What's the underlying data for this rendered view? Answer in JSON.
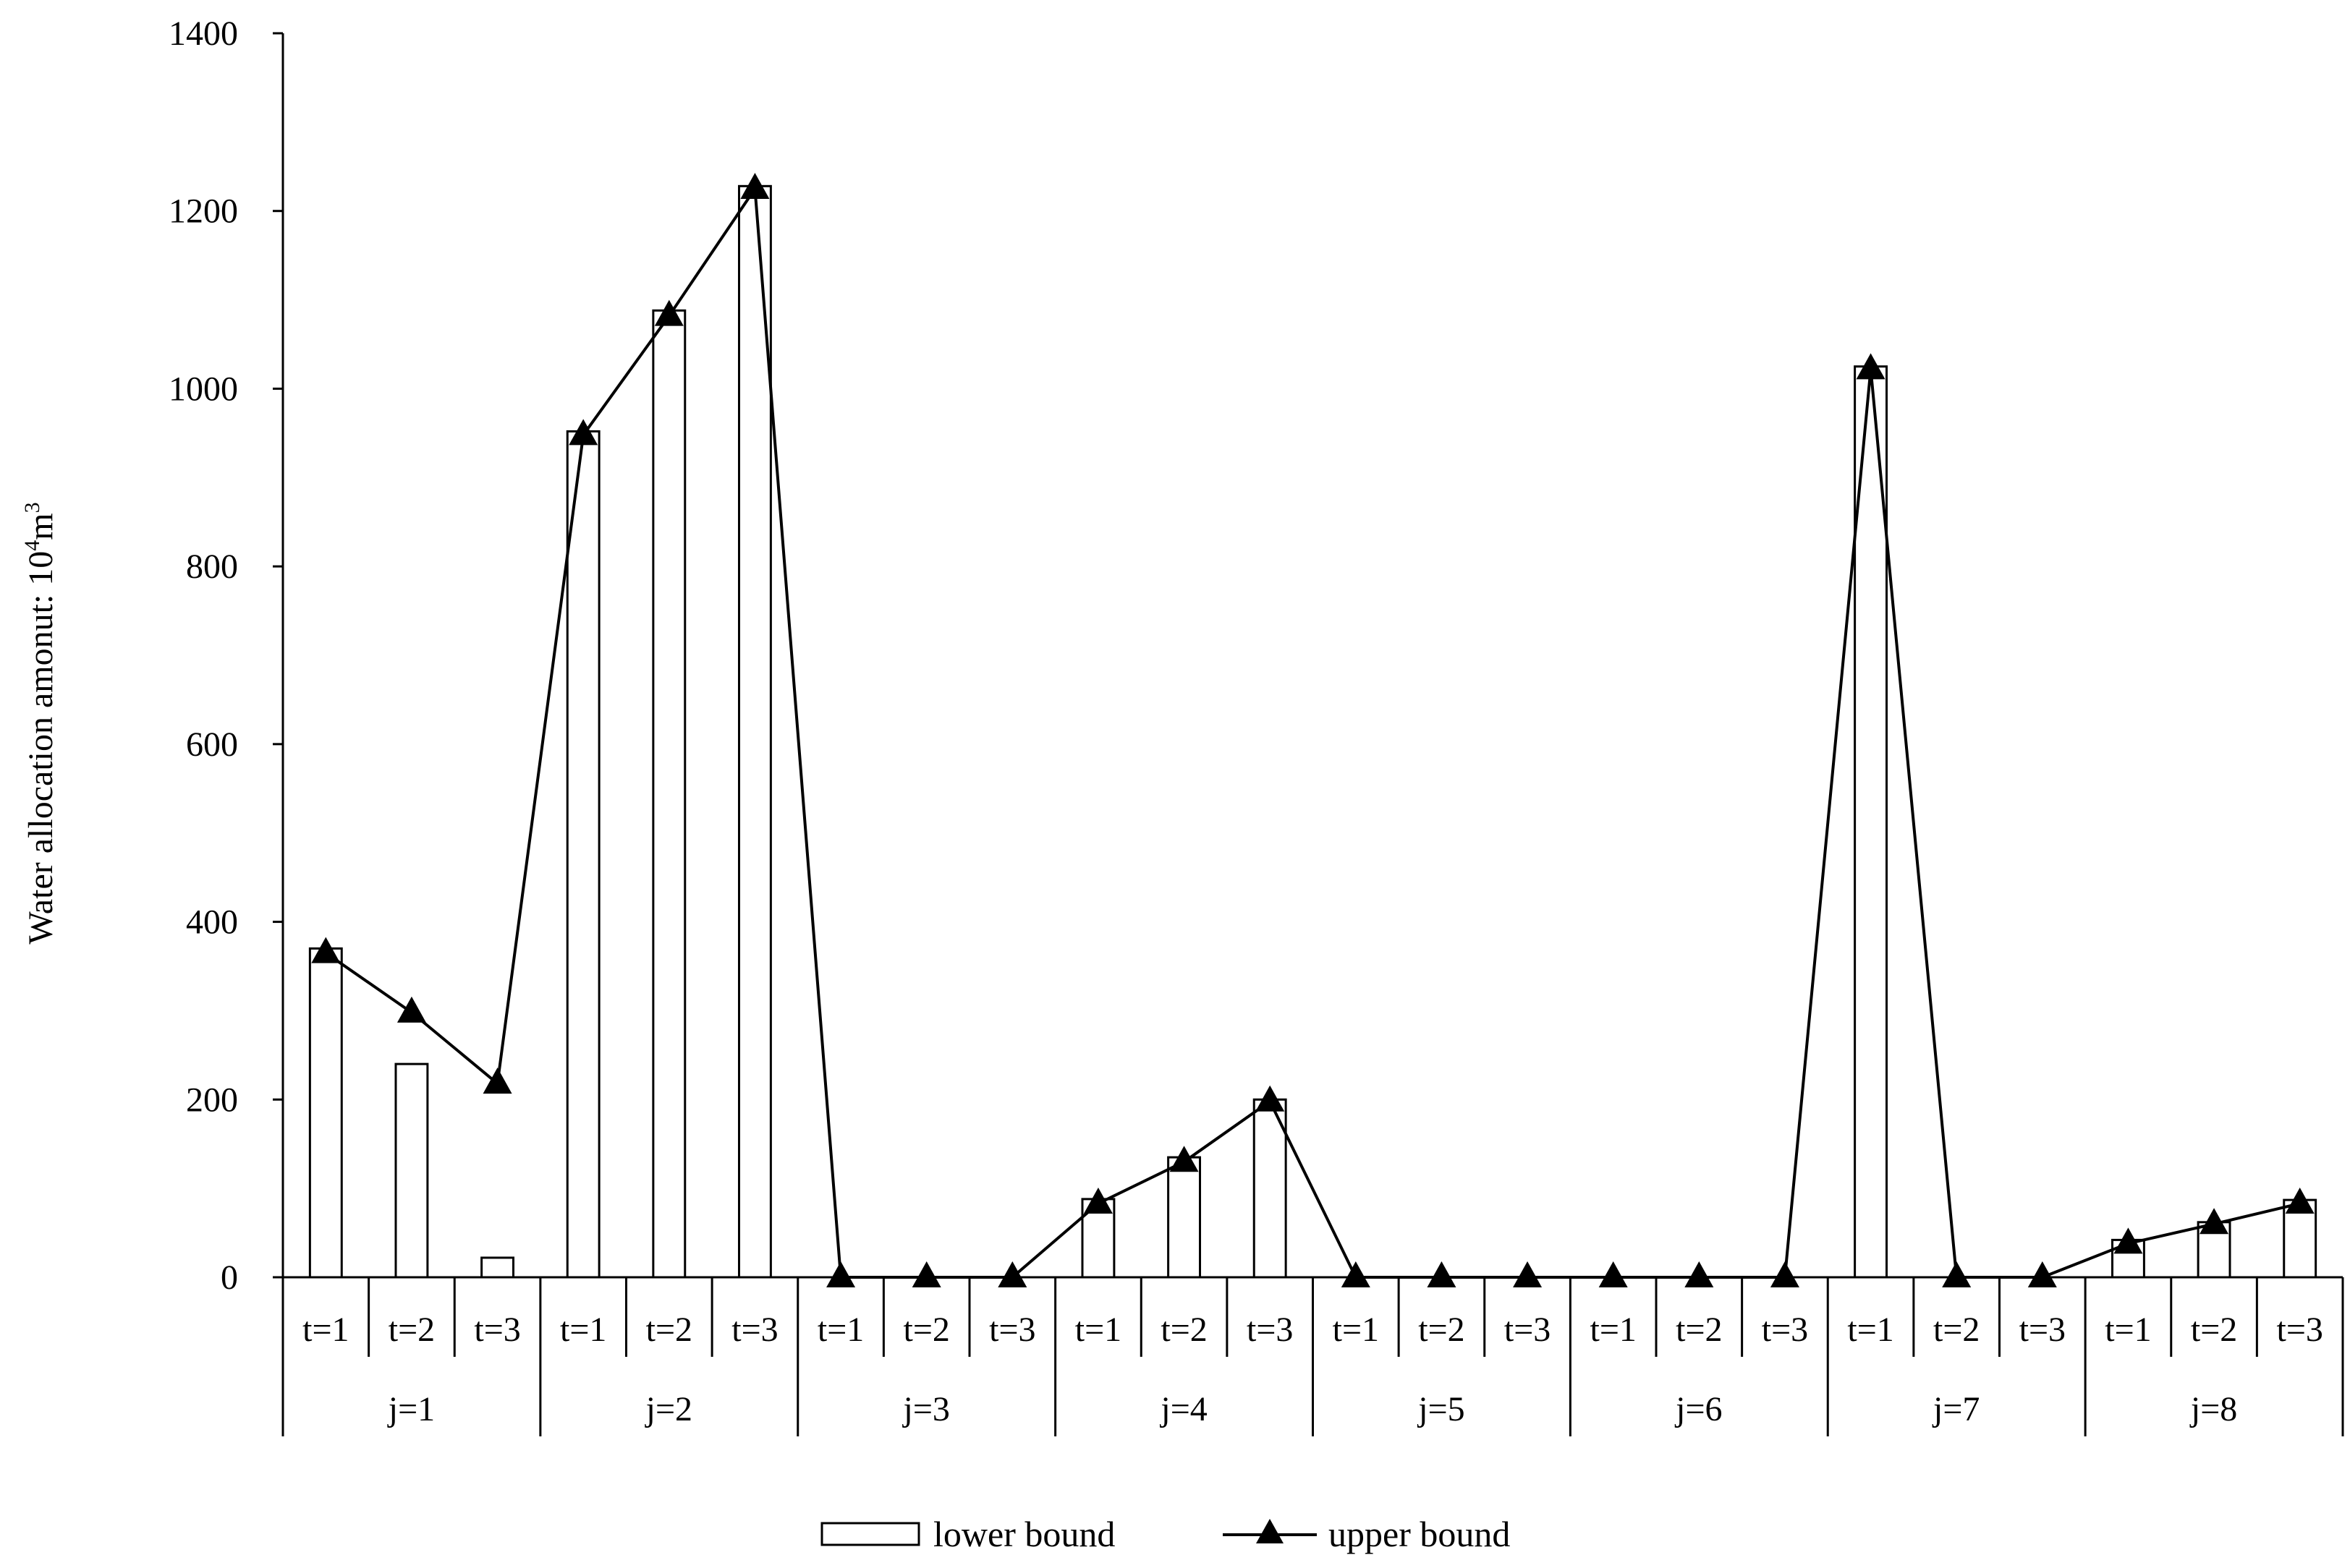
{
  "chart_data": {
    "type": "bar",
    "title": "",
    "xlabel": "",
    "ylabel": "Water allocation  amonut:  10",
    "ylabel_sup": "4",
    "ylabel_unit_tail": "m",
    "ylabel_unit_sup": "3",
    "ylim": [
      0,
      1400
    ],
    "yticks": [
      0,
      200,
      400,
      600,
      800,
      1000,
      1200,
      1400
    ],
    "grid": false,
    "legend_position": "bottom",
    "groups": [
      "j=1",
      "j=2",
      "j=3",
      "j=4",
      "j=5",
      "j=6",
      "j=7",
      "j=8"
    ],
    "categories": [
      "t=1",
      "t=2",
      "t=3",
      "t=1",
      "t=2",
      "t=3",
      "t=1",
      "t=2",
      "t=3",
      "t=1",
      "t=2",
      "t=3",
      "t=1",
      "t=2",
      "t=3",
      "t=1",
      "t=2",
      "t=3",
      "t=1",
      "t=2",
      "t=3",
      "t=1",
      "t=2",
      "t=3"
    ],
    "series": [
      {
        "name": "lower bound",
        "kind": "bar",
        "values": [
          370,
          240,
          22,
          952,
          1088,
          1228,
          0,
          0,
          0,
          88,
          135,
          200,
          0,
          0,
          0,
          0,
          0,
          0,
          1025,
          0,
          0,
          42,
          62,
          87
        ]
      },
      {
        "name": "upper bound",
        "kind": "line",
        "marker": "triangle",
        "values": [
          365,
          298,
          218,
          948,
          1082,
          1225,
          0,
          0,
          0,
          83,
          130,
          198,
          0,
          0,
          0,
          0,
          0,
          0,
          1022,
          0,
          0,
          38,
          60,
          83
        ]
      }
    ]
  }
}
